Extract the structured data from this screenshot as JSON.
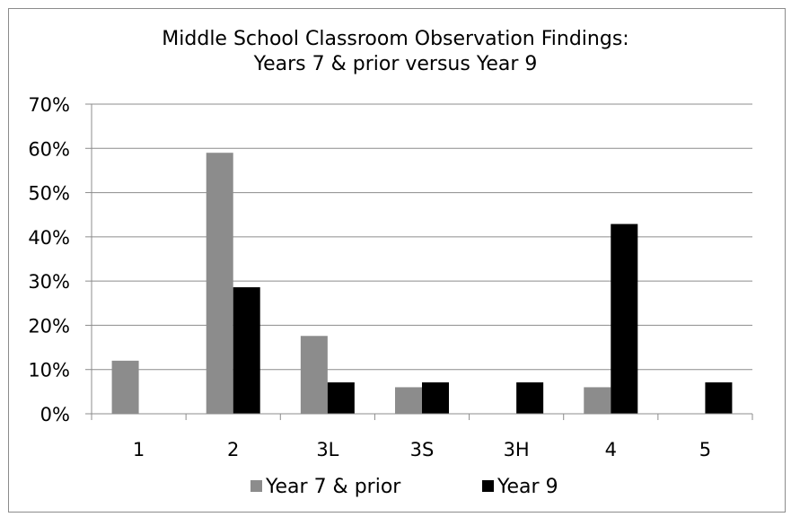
{
  "chart_data": {
    "type": "bar",
    "title_lines": [
      "Middle School Classroom Observation Findings:",
      "Years 7 & prior versus Year 9"
    ],
    "categories": [
      "1",
      "2",
      "3L",
      "3S",
      "3H",
      "4",
      "5"
    ],
    "series": [
      {
        "name": "Year 7 & prior",
        "color": "#8c8c8c",
        "values": [
          12,
          59,
          17.6,
          6,
          0,
          6,
          0
        ]
      },
      {
        "name": "Year 9",
        "color": "#000000",
        "values": [
          0,
          28.6,
          7.1,
          7.1,
          7.1,
          42.9,
          7.1
        ]
      }
    ],
    "y_ticks": [
      "0%",
      "10%",
      "20%",
      "30%",
      "40%",
      "50%",
      "60%",
      "70%"
    ],
    "ylim": [
      0,
      70
    ],
    "y_unit": "%",
    "grid": true,
    "legend_position": "bottom"
  }
}
